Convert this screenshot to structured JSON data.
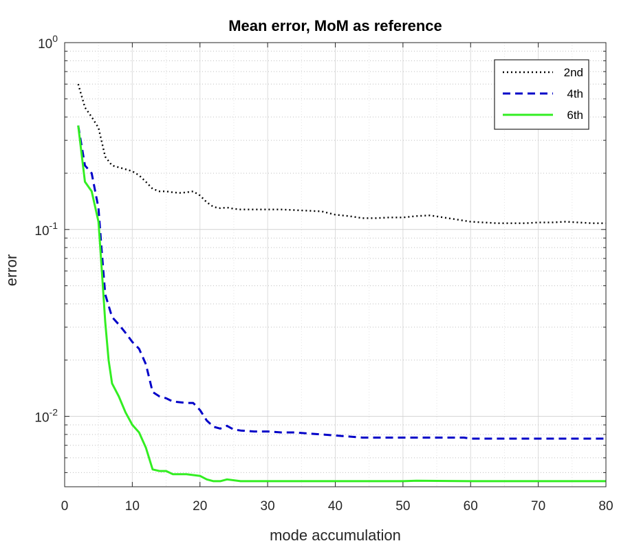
{
  "chart_data": {
    "type": "line",
    "title": "Mean error, MoM as reference",
    "xlabel": "mode accumulation",
    "ylabel": "error",
    "xlim": [
      0,
      80
    ],
    "ylim": [
      0.0042,
      1
    ],
    "yscale": "log",
    "grid": true,
    "legend_position": "top-right",
    "x_ticks": [
      0,
      10,
      20,
      30,
      40,
      50,
      60,
      70,
      80
    ],
    "x_tick_labels": [
      "0",
      "10",
      "20",
      "30",
      "40",
      "50",
      "60",
      "70",
      "80"
    ],
    "y_ticks": [
      {
        "value": 1,
        "base": "10",
        "exp": "0"
      },
      {
        "value": 0.1,
        "base": "10",
        "exp": "-1"
      },
      {
        "value": 0.01,
        "base": "10",
        "exp": "-2"
      }
    ],
    "series": [
      {
        "name": "2nd",
        "color": "#000000",
        "style": "dotted",
        "x": [
          2,
          3,
          4,
          5,
          6,
          7,
          8,
          9,
          10,
          11,
          12,
          13,
          14,
          15,
          16,
          17,
          18,
          19,
          20,
          21,
          22,
          23,
          24,
          25,
          26,
          28,
          30,
          32,
          34,
          36,
          38,
          40,
          42,
          44,
          46,
          48,
          50,
          52,
          54,
          56,
          58,
          60,
          62,
          64,
          66,
          68,
          70,
          72,
          74,
          76,
          78,
          80
        ],
        "values": [
          0.6,
          0.45,
          0.4,
          0.35,
          0.245,
          0.22,
          0.215,
          0.21,
          0.205,
          0.195,
          0.18,
          0.165,
          0.16,
          0.16,
          0.158,
          0.157,
          0.158,
          0.16,
          0.152,
          0.14,
          0.132,
          0.13,
          0.131,
          0.129,
          0.128,
          0.128,
          0.128,
          0.128,
          0.127,
          0.126,
          0.125,
          0.12,
          0.118,
          0.115,
          0.115,
          0.116,
          0.116,
          0.118,
          0.119,
          0.116,
          0.113,
          0.11,
          0.109,
          0.108,
          0.108,
          0.108,
          0.109,
          0.109,
          0.11,
          0.109,
          0.108,
          0.108
        ]
      },
      {
        "name": "4th",
        "color": "#0000c8",
        "style": "dashed",
        "x": [
          2,
          3,
          4,
          5,
          5.5,
          6,
          7,
          8,
          9,
          10,
          11,
          12,
          13,
          14,
          15,
          16,
          18,
          19,
          20,
          21,
          22,
          23,
          24,
          25,
          26,
          28,
          30,
          32,
          34,
          36,
          38,
          40,
          42,
          44,
          46,
          48,
          50,
          55,
          59,
          60,
          62,
          70,
          80
        ],
        "values": [
          0.36,
          0.22,
          0.2,
          0.13,
          0.075,
          0.045,
          0.034,
          0.031,
          0.028,
          0.025,
          0.023,
          0.019,
          0.0135,
          0.0128,
          0.0125,
          0.012,
          0.0118,
          0.0118,
          0.0108,
          0.0095,
          0.0088,
          0.0086,
          0.0089,
          0.0085,
          0.0084,
          0.0083,
          0.0083,
          0.0082,
          0.0082,
          0.0081,
          0.008,
          0.0079,
          0.0078,
          0.0077,
          0.0077,
          0.0077,
          0.0077,
          0.0077,
          0.0077,
          0.0076,
          0.0076,
          0.0076,
          0.0076
        ]
      },
      {
        "name": "6th",
        "color": "#33ee22",
        "style": "solid",
        "x": [
          2,
          3,
          4,
          5,
          5.5,
          6,
          6.5,
          7,
          8,
          9,
          10,
          11,
          12,
          13,
          14,
          15,
          16,
          18,
          20,
          21,
          22,
          23,
          24,
          26,
          30,
          34,
          38,
          40,
          50,
          52,
          60,
          70,
          80
        ],
        "values": [
          0.36,
          0.18,
          0.16,
          0.11,
          0.06,
          0.032,
          0.02,
          0.015,
          0.0128,
          0.0105,
          0.009,
          0.0082,
          0.0068,
          0.0052,
          0.0051,
          0.0051,
          0.0049,
          0.0049,
          0.0048,
          0.0046,
          0.0045,
          0.0045,
          0.0046,
          0.0045,
          0.0045,
          0.0045,
          0.0045,
          0.0045,
          0.0045,
          0.00452,
          0.0045,
          0.0045,
          0.0045
        ]
      }
    ]
  }
}
